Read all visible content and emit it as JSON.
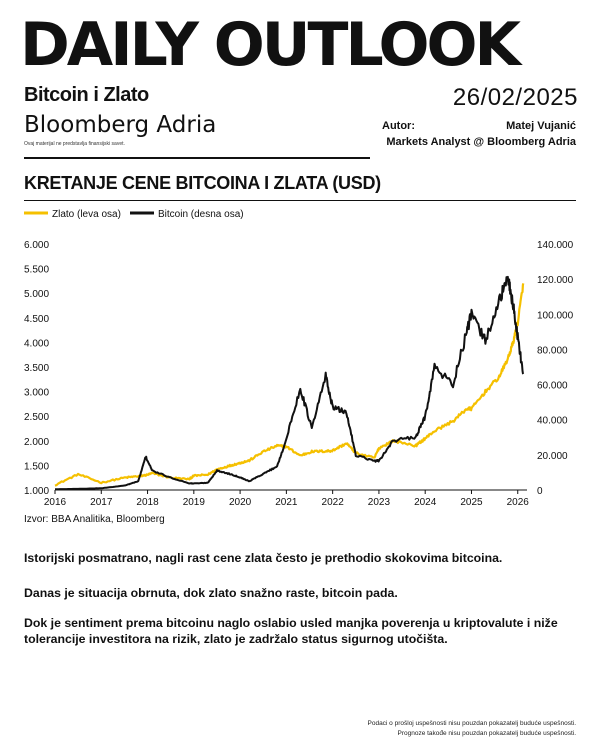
{
  "header": {
    "title": "DAILY OUTLOOK",
    "subtitle": "Bitcoin i Zlato",
    "date": "26/02/2025",
    "brand": "Bloomberg Adria",
    "disclaimer": "Ovaj materijal ne predstavlja finansijski savet.",
    "author_label": "Autor:",
    "author_name": "Matej Vujanić",
    "author_role": "Markets Analyst @ Bloomberg Adria"
  },
  "section_title": "KRETANJE CENE BITCOINA I ZLATA (USD)",
  "source": "Izvor: BBA Analitika, Bloomberg",
  "paragraphs": [
    "Istorijski posmatrano, nagli rast cene zlata često je prethodio skokovima bitcoina.",
    "Danas je situacija obrnuta, dok zlato snažno raste, bitcoin pada.",
    "Dok je sentiment prema bitcoinu naglo oslabio usled manjka poverenja u kriptovalute i niže tolerancije investitora na rizik, zlato je zadržalo status sigurnog utočišta."
  ],
  "footer": [
    "Podaci o prošloj uspešnosti nisu pouzdan pokazatelj buduće uspešnosti.",
    "Prognoze takođe nisu pouzdan pokazatelj buduće uspešnosti."
  ],
  "colors": {
    "gold": "#f5c000",
    "bitcoin": "#111111",
    "grid": "#e6e6e6",
    "text": "#111111"
  },
  "chart_data": {
    "type": "line",
    "x": [
      "2016",
      "2016.5",
      "2017",
      "2017.5",
      "2017.8",
      "2017.96",
      "2018.1",
      "2018.5",
      "2018.9",
      "2019",
      "2019.3",
      "2019.5",
      "2019.8",
      "2020",
      "2020.2",
      "2020.5",
      "2020.8",
      "2021",
      "2021.3",
      "2021.55",
      "2021.85",
      "2022",
      "2022.3",
      "2022.5",
      "2022.9",
      "2023",
      "2023.3",
      "2023.8",
      "2024",
      "2024.2",
      "2024.6",
      "2024.9",
      "2025",
      "2025.3",
      "2025.6",
      "2025.8",
      "2025.9",
      "2026",
      "2026.12"
    ],
    "series": [
      {
        "name": "Zlato (leva osa)",
        "axis": "left",
        "values": [
          1100,
          1320,
          1150,
          1250,
          1280,
          1300,
          1340,
          1250,
          1220,
          1290,
          1310,
          1420,
          1500,
          1550,
          1600,
          1780,
          1900,
          1880,
          1700,
          1780,
          1790,
          1800,
          1950,
          1750,
          1650,
          1850,
          2000,
          1900,
          2050,
          2200,
          2400,
          2650,
          2650,
          3000,
          3300,
          3700,
          4000,
          4400,
          5200
        ]
      },
      {
        "name": "Bitcoin (desna osa)",
        "axis": "right",
        "values": [
          430,
          650,
          1000,
          2500,
          5000,
          19000,
          11000,
          7000,
          3800,
          3700,
          4100,
          11000,
          9000,
          7200,
          5000,
          9200,
          13500,
          29000,
          58000,
          35000,
          65000,
          47000,
          44000,
          20000,
          16500,
          16500,
          28000,
          30000,
          42000,
          70000,
          60000,
          90000,
          100000,
          85000,
          108000,
          120000,
          105000,
          87000,
          66000
        ]
      }
    ],
    "xticks": [
      "2016",
      "2017",
      "2018",
      "2019",
      "2020",
      "2021",
      "2022",
      "2023",
      "2024",
      "2025",
      "2026"
    ],
    "y_left": {
      "ticks": [
        "1.000",
        "1.500",
        "2.000",
        "2.500",
        "3.000",
        "3.500",
        "4.000",
        "4.500",
        "5.000",
        "5.500",
        "6.000"
      ],
      "range": [
        1000,
        6000
      ]
    },
    "y_right": {
      "ticks": [
        "0",
        "20.000",
        "40.000",
        "60.000",
        "80.000",
        "100.000",
        "120.000",
        "140.000"
      ],
      "range": [
        0,
        140000
      ]
    },
    "x_range": [
      2016,
      2026.2
    ],
    "legend": [
      "Zlato (leva osa)",
      "Bitcoin (desna osa)"
    ],
    "legend_position": "top-left",
    "grid": false
  }
}
